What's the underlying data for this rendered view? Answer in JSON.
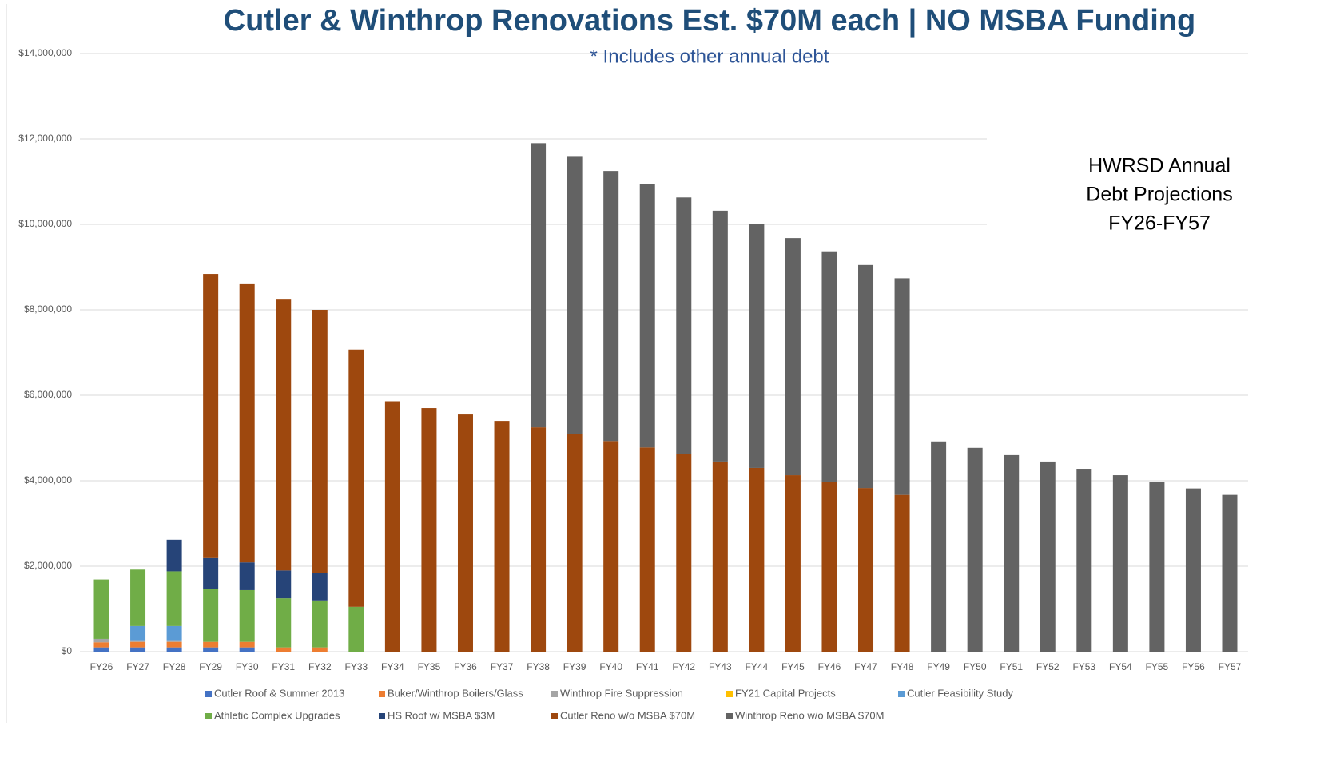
{
  "chart_data": {
    "type": "stacked_bar",
    "title": "Cutler & Winthrop Renovations Est. $70M each | NO MSBA Funding",
    "subtitle": "* Includes other annual debt",
    "annotation": [
      "HWRSD Annual",
      "Debt Projections",
      "FY26-FY57"
    ],
    "categories": [
      "FY26",
      "FY27",
      "FY28",
      "FY29",
      "FY30",
      "FY31",
      "FY32",
      "FY33",
      "FY34",
      "FY35",
      "FY36",
      "FY37",
      "FY38",
      "FY39",
      "FY40",
      "FY41",
      "FY42",
      "FY43",
      "FY44",
      "FY45",
      "FY46",
      "FY47",
      "FY48",
      "FY49",
      "FY50",
      "FY51",
      "FY52",
      "FY53",
      "FY54",
      "FY55",
      "FY56",
      "FY57"
    ],
    "series": [
      {
        "name": "Cutler Roof & Summer 2013",
        "color": "#4472c4",
        "values": [
          100000,
          100000,
          100000,
          100000,
          100000,
          null,
          null,
          null,
          null,
          null,
          null,
          null,
          null,
          null,
          null,
          null,
          null,
          null,
          null,
          null,
          null,
          null,
          null,
          null,
          null,
          null,
          null,
          null,
          null,
          null,
          null,
          null
        ]
      },
      {
        "name": "Buker/Winthrop Boilers/Glass",
        "color": "#ed7d31",
        "values": [
          120000,
          130000,
          130000,
          130000,
          130000,
          100000,
          100000,
          null,
          null,
          null,
          null,
          null,
          null,
          null,
          null,
          null,
          null,
          null,
          null,
          null,
          null,
          null,
          null,
          null,
          null,
          null,
          null,
          null,
          null,
          null,
          null,
          null
        ]
      },
      {
        "name": "Winthrop Fire Suppression",
        "color": "#a5a5a5",
        "values": [
          80000,
          20000,
          20000,
          null,
          null,
          null,
          null,
          null,
          null,
          null,
          null,
          null,
          null,
          null,
          null,
          null,
          null,
          null,
          null,
          null,
          null,
          null,
          null,
          null,
          null,
          null,
          null,
          null,
          null,
          null,
          null,
          null
        ]
      },
      {
        "name": "FY21 Capital Projects",
        "color": "#ffc000",
        "values": [
          null,
          null,
          null,
          null,
          null,
          null,
          null,
          null,
          null,
          null,
          null,
          null,
          null,
          null,
          null,
          null,
          null,
          null,
          null,
          null,
          null,
          null,
          null,
          null,
          null,
          null,
          null,
          null,
          null,
          null,
          null,
          null
        ]
      },
      {
        "name": "Cutler Feasibility Study",
        "color": "#5b9bd5",
        "values": [
          null,
          350000,
          350000,
          null,
          null,
          null,
          null,
          null,
          null,
          null,
          null,
          null,
          null,
          null,
          null,
          null,
          null,
          null,
          null,
          null,
          null,
          null,
          null,
          null,
          null,
          null,
          null,
          null,
          null,
          null,
          null,
          null
        ]
      },
      {
        "name": "Athletic Complex Upgrades",
        "color": "#70ad47",
        "values": [
          1390000,
          1320000,
          1280000,
          1230000,
          1210000,
          1150000,
          1100000,
          1050000,
          null,
          null,
          null,
          null,
          null,
          null,
          null,
          null,
          null,
          null,
          null,
          null,
          null,
          null,
          null,
          null,
          null,
          null,
          null,
          null,
          null,
          null,
          null,
          null
        ]
      },
      {
        "name": "HS Roof w/ MSBA $3M",
        "color": "#264478",
        "values": [
          null,
          null,
          740000,
          730000,
          650000,
          650000,
          650000,
          null,
          null,
          null,
          null,
          null,
          null,
          null,
          null,
          null,
          null,
          null,
          null,
          null,
          null,
          null,
          null,
          null,
          null,
          null,
          null,
          null,
          null,
          null,
          null,
          null
        ]
      },
      {
        "name": "Cutler Reno w/o MSBA $70M",
        "color": "#9e480e",
        "values": [
          null,
          null,
          null,
          6650000,
          6510000,
          6340000,
          6150000,
          6020000,
          5860000,
          5700000,
          5550000,
          5400000,
          5250000,
          5100000,
          4930000,
          4780000,
          4620000,
          4450000,
          4300000,
          4130000,
          3980000,
          3830000,
          3670000,
          null,
          null,
          null,
          null,
          null,
          null,
          null,
          null,
          null
        ]
      },
      {
        "name": "Winthrop Reno w/o MSBA $70M",
        "color": "#636363",
        "values": [
          null,
          null,
          null,
          null,
          null,
          null,
          null,
          null,
          null,
          null,
          null,
          null,
          6650000,
          6500000,
          6320000,
          6170000,
          6010000,
          5870000,
          5700000,
          5550000,
          5390000,
          5220000,
          5070000,
          4920000,
          4770000,
          4600000,
          4450000,
          4280000,
          4130000,
          3970000,
          3820000,
          3670000
        ]
      }
    ],
    "ylim": [
      0,
      14000000
    ],
    "yticks": [
      {
        "value": 0,
        "label": "$0"
      },
      {
        "value": 2000000,
        "label": "$2,000,000"
      },
      {
        "value": 4000000,
        "label": "$4,000,000"
      },
      {
        "value": 6000000,
        "label": "$6,000,000"
      },
      {
        "value": 8000000,
        "label": "$8,000,000"
      },
      {
        "value": 10000000,
        "label": "$10,000,000"
      },
      {
        "value": 12000000,
        "label": "$12,000,000"
      },
      {
        "value": 14000000,
        "label": "$14,000,000"
      }
    ],
    "grid": true,
    "legend": "bottom"
  }
}
